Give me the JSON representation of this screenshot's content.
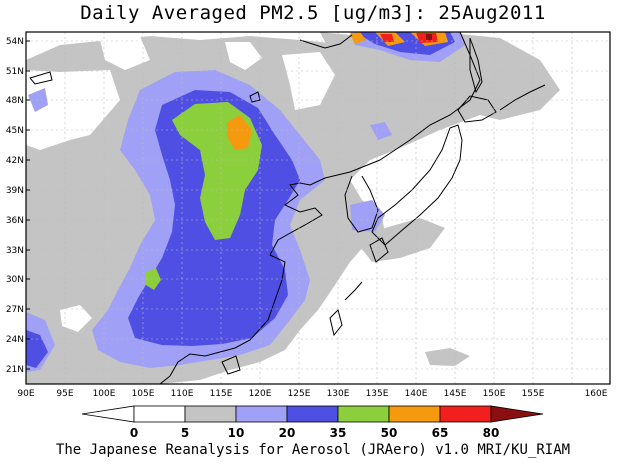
{
  "title": "Daily Averaged PM2.5 [ug/m3]: 25Aug2011",
  "footer": "The Japanese Reanalysis for Aerosol (JRAero) v1.0 MRI/KU_RIAM",
  "lat_ticks": [
    "54N",
    "51N",
    "48N",
    "45N",
    "42N",
    "39N",
    "36N",
    "33N",
    "30N",
    "27N",
    "24N",
    "21N"
  ],
  "lon_ticks": [
    "90E",
    "95E",
    "100E",
    "105E",
    "110E",
    "115E",
    "120E",
    "125E",
    "130E",
    "135E",
    "140E",
    "145E",
    "150E",
    "155E",
    "160E"
  ],
  "colorbar": {
    "labels": [
      "0",
      "5",
      "10",
      "20",
      "35",
      "50",
      "65",
      "80"
    ],
    "colors": [
      "#ffffff",
      "#ffffff",
      "#c4c4c4",
      "#a0a0f6",
      "#4f4fe4",
      "#8ccf3c",
      "#f59a0e",
      "#f21f1f",
      "#8a0f0f"
    ]
  },
  "fill_colors": {
    "level_5_10": "#c4c4c4",
    "level_10_20": "#a0a0f6",
    "level_20_35": "#4f4fe4",
    "level_35_50": "#8ccf3c",
    "level_50_65": "#f59a0e",
    "level_65_80": "#f21f1f",
    "level_80_plus": "#8a0f0f"
  }
}
